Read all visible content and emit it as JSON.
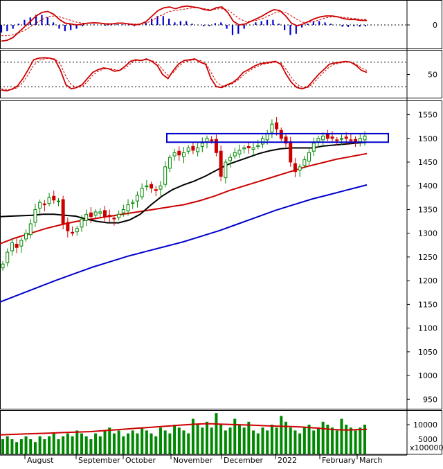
{
  "chart_data": [
    {
      "type": "line",
      "panel": "macd",
      "y_ticks": [
        "0"
      ],
      "series": [
        {
          "key": "macd_line",
          "color": "#cc0000"
        },
        {
          "key": "signal_line",
          "color": "#cc0000",
          "dashed": true
        },
        {
          "key": "histogram",
          "color": "#0000cc",
          "style": "bar"
        }
      ],
      "values": {
        "macd_line": [
          -0.9,
          -0.85,
          -0.7,
          -0.4,
          -0.1,
          0.2,
          0.5,
          0.7,
          0.75,
          0.6,
          0.3,
          0.1,
          0.05,
          0.0,
          0.05,
          0.1,
          0.12,
          0.1,
          0.05,
          0.05,
          0.1,
          0.1,
          0.05,
          0.0,
          0.05,
          0.2,
          0.5,
          0.8,
          0.95,
          1.0,
          0.9,
          1.0,
          1.05,
          1.0,
          0.95,
          0.85,
          0.8,
          0.95,
          1.0,
          0.7,
          0.2,
          0.0,
          0.05,
          0.2,
          0.35,
          0.5,
          0.7,
          0.85,
          0.8,
          0.5,
          0.1,
          -0.05,
          0.05,
          0.2,
          0.35,
          0.45,
          0.5,
          0.5,
          0.45,
          0.35,
          0.3,
          0.3,
          0.25,
          0.25
        ],
        "signal_line": [
          -0.6,
          -0.6,
          -0.55,
          -0.45,
          -0.3,
          -0.1,
          0.1,
          0.3,
          0.45,
          0.5,
          0.45,
          0.35,
          0.25,
          0.15,
          0.1,
          0.1,
          0.1,
          0.1,
          0.08,
          0.07,
          0.08,
          0.08,
          0.07,
          0.05,
          0.05,
          0.1,
          0.25,
          0.45,
          0.6,
          0.75,
          0.8,
          0.85,
          0.9,
          0.95,
          0.95,
          0.9,
          0.85,
          0.88,
          0.9,
          0.85,
          0.6,
          0.35,
          0.2,
          0.2,
          0.25,
          0.35,
          0.5,
          0.65,
          0.75,
          0.7,
          0.5,
          0.3,
          0.15,
          0.15,
          0.2,
          0.3,
          0.4,
          0.45,
          0.45,
          0.42,
          0.38,
          0.35,
          0.32,
          0.3
        ]
      }
    },
    {
      "type": "line",
      "panel": "stochastic",
      "y_ticks": [
        "50"
      ],
      "series": [
        {
          "key": "k_line",
          "color": "#cc0000"
        },
        {
          "key": "d_line",
          "color": "#cc0000",
          "dashed": true
        }
      ],
      "values": {
        "k_line": [
          12,
          10,
          14,
          22,
          40,
          62,
          86,
          90,
          91,
          90,
          86,
          60,
          25,
          15,
          18,
          25,
          40,
          55,
          62,
          66,
          64,
          58,
          60,
          70,
          82,
          86,
          84,
          88,
          82,
          72,
          50,
          40,
          60,
          76,
          84,
          86,
          88,
          80,
          75,
          40,
          20,
          18,
          25,
          30,
          40,
          55,
          62,
          70,
          76,
          78,
          80,
          82,
          75,
          50,
          30,
          18,
          15,
          20,
          35,
          50,
          62,
          75,
          78,
          80,
          82,
          80,
          72,
          60,
          55
        ],
        "d_line": [
          15,
          13,
          13,
          18,
          30,
          50,
          72,
          85,
          88,
          90,
          88,
          75,
          45,
          25,
          18,
          20,
          32,
          48,
          58,
          63,
          65,
          62,
          60,
          65,
          76,
          84,
          85,
          86,
          84,
          78,
          62,
          48,
          55,
          70,
          80,
          84,
          86,
          84,
          78,
          55,
          32,
          22,
          22,
          28,
          36,
          48,
          58,
          66,
          72,
          76,
          78,
          80,
          78,
          62,
          42,
          26,
          18,
          18,
          28,
          42,
          56,
          68,
          75,
          78,
          80,
          80,
          75,
          66,
          60
        ]
      }
    },
    {
      "type": "candlestick",
      "panel": "price",
      "x_labels": [
        "August",
        "September",
        "October",
        "November",
        "December",
        "2022",
        "February",
        "March"
      ],
      "y_ticks": [
        "950",
        "1000",
        "1050",
        "1100",
        "1150",
        "1200",
        "1250",
        "1300",
        "1350",
        "1400",
        "1450",
        "1500",
        "1550"
      ],
      "ylim": [
        930,
        1580
      ],
      "close": [
        1235,
        1260,
        1280,
        1270,
        1285,
        1300,
        1320,
        1350,
        1365,
        1360,
        1375,
        1370,
        1368,
        1320,
        1305,
        1300,
        1310,
        1330,
        1340,
        1335,
        1345,
        1345,
        1335,
        1335,
        1330,
        1340,
        1350,
        1360,
        1365,
        1380,
        1395,
        1400,
        1395,
        1390,
        1400,
        1440,
        1460,
        1470,
        1465,
        1470,
        1480,
        1475,
        1480,
        1490,
        1500,
        1495,
        1470,
        1420,
        1450,
        1460,
        1470,
        1475,
        1480,
        1480,
        1480,
        1485,
        1500,
        1510,
        1530,
        1520,
        1500,
        1490,
        1450,
        1430,
        1440,
        1455,
        1470,
        1490,
        1500,
        1505,
        1500,
        1500,
        1495,
        1500,
        1500,
        1495,
        1490,
        1500,
        1505
      ],
      "ma50": [
        1335,
        1336,
        1337,
        1338,
        1340,
        1340,
        1338,
        1336,
        1330,
        1325,
        1322,
        1322,
        1328,
        1340,
        1360,
        1378,
        1392,
        1402,
        1410,
        1420,
        1432,
        1444,
        1452,
        1460,
        1468,
        1474,
        1478,
        1480,
        1480,
        1480,
        1484,
        1486,
        1488,
        1490,
        1492
      ],
      "ma100": [
        1278,
        1290,
        1300,
        1310,
        1318,
        1325,
        1330,
        1335,
        1340,
        1345,
        1350,
        1355,
        1360,
        1368,
        1378,
        1390,
        1400,
        1410,
        1420,
        1430,
        1440,
        1448,
        1456,
        1462,
        1468
      ],
      "ma200": [
        1155,
        1170,
        1185,
        1200,
        1214,
        1228,
        1240,
        1252,
        1262,
        1272,
        1282,
        1294,
        1306,
        1320,
        1334,
        1348,
        1360,
        1372,
        1382,
        1392,
        1402
      ],
      "resistance_zone": {
        "low": 1492,
        "high": 1510
      }
    },
    {
      "type": "bar",
      "panel": "volume",
      "y_ticks": [
        "10000",
        "5000"
      ],
      "multiplier_label": "x100000",
      "values": [
        5,
        6,
        5,
        4,
        5,
        6,
        5,
        4,
        6,
        5,
        6,
        7,
        5,
        6,
        7,
        6,
        8,
        7,
        6,
        5,
        7,
        6,
        8,
        9,
        7,
        8,
        6,
        7,
        8,
        7,
        9,
        8,
        7,
        6,
        9,
        8,
        7,
        10,
        9,
        8,
        7,
        12,
        10,
        9,
        11,
        9,
        14,
        10,
        8,
        9,
        12,
        10,
        9,
        11,
        8,
        7,
        9,
        8,
        10,
        9,
        13,
        11,
        9,
        8,
        7,
        9,
        10,
        8,
        9,
        11,
        10,
        9,
        8,
        12,
        10,
        9,
        8,
        9,
        10
      ],
      "ma": [
        6.5,
        6.6,
        6.7,
        6.8,
        6.9,
        7.0,
        7.1,
        7.2,
        7.3,
        7.4,
        7.5,
        7.6,
        7.8,
        8.0,
        8.2,
        8.4,
        8.6,
        8.8,
        9.0,
        9.2,
        9.4,
        9.6,
        9.8,
        10.0,
        10.2,
        10.3,
        10.3,
        10.2,
        10.1,
        10.0,
        9.9,
        9.8,
        9.7,
        9.6,
        9.5,
        9.4,
        9.3,
        9.2,
        9.0,
        8.8,
        8.5,
        8.3,
        8.2,
        8.2,
        8.3,
        8.4
      ]
    }
  ]
}
